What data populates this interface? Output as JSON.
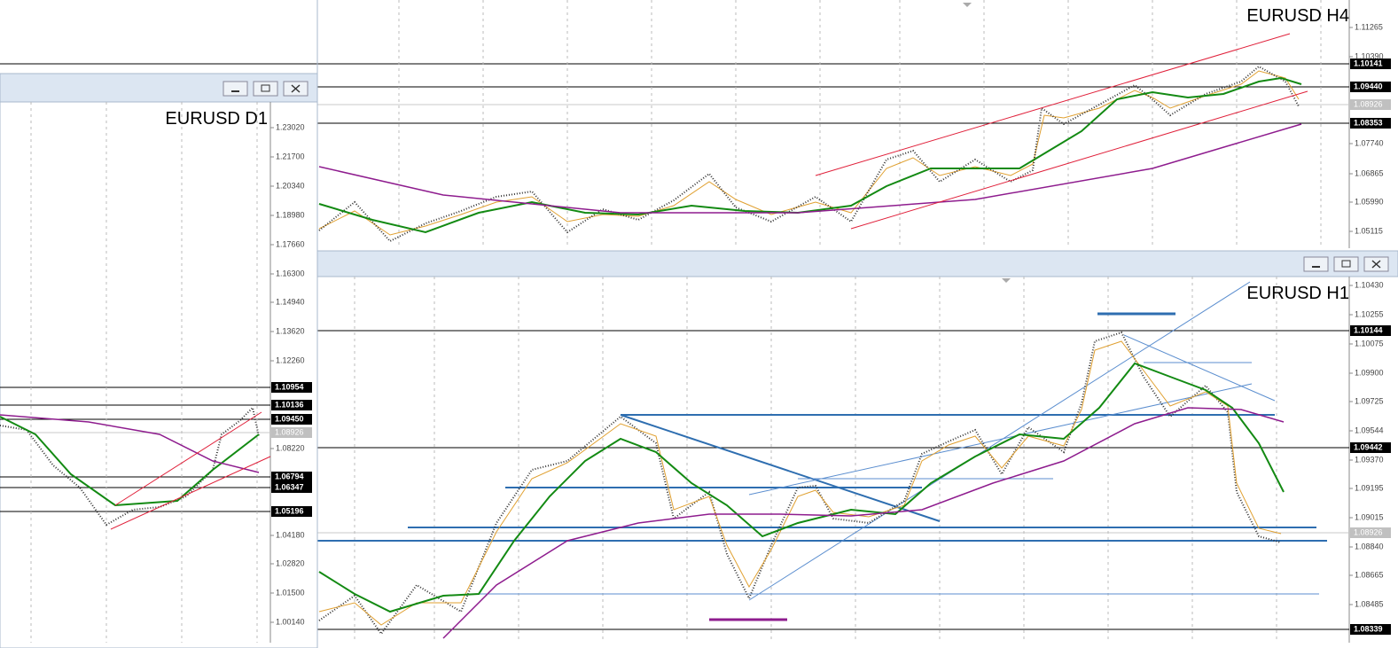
{
  "windows": [
    {
      "title": "EURUSD H4",
      "price_labels": [
        "1.11265",
        "1.10390",
        "1.07740",
        "1.06865",
        "1.05990",
        "1.05115"
      ],
      "levels": [
        "1.10141",
        "1.09440",
        "1.08353"
      ],
      "current": "1.08926"
    },
    {
      "title": "EURUSD H1",
      "price_labels": [
        "1.10430",
        "1.10255",
        "1.10075",
        "1.09900",
        "1.09725",
        "1.09544",
        "1.09370",
        "1.09195",
        "1.09015",
        "1.08840",
        "1.08665",
        "1.08485"
      ],
      "levels": [
        "1.10144",
        "1.09442",
        "1.08339"
      ],
      "current": "1.08926"
    },
    {
      "title": "EURUSD D1",
      "price_labels": [
        "1.23020",
        "1.21700",
        "1.20340",
        "1.18980",
        "1.17660",
        "1.16300",
        "1.14940",
        "1.13620",
        "1.12260",
        "1.08220",
        "1.04180",
        "1.02820",
        "1.01500",
        "1.00140"
      ],
      "levels": [
        "1.10954",
        "1.10136",
        "1.09450",
        "1.06794",
        "1.06347",
        "1.05196"
      ],
      "current": "1.08926"
    }
  ]
}
